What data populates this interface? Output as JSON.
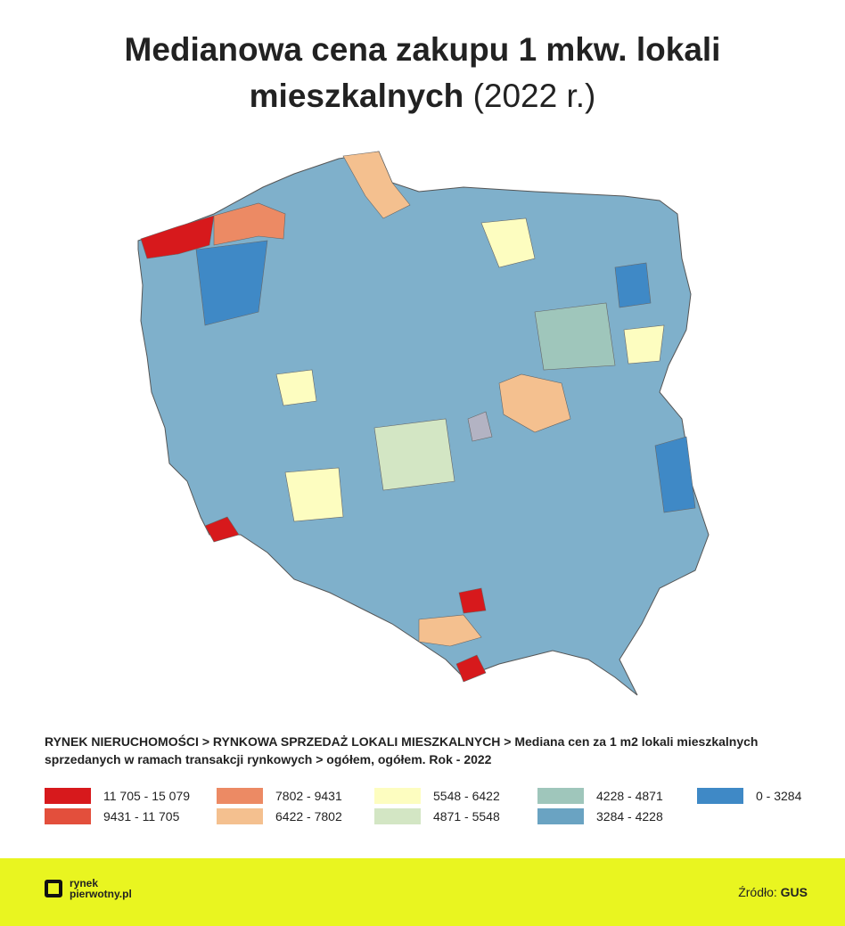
{
  "title": "Medianowa cena zakupu 1 mkw. lokali mieszkalnych",
  "title_suffix": "(2022 r.)",
  "description": "RYNEK NIERUCHOMOŚCI > RYNKOWA SPRZEDAŻ LOKALI MIESZKALNYCH > Mediana cen za 1 m2 lokali mieszkalnych sprzedanych w ramach transakcji rynkowych > ogółem, ogółem. Rok - 2022",
  "legend": [
    {
      "label": "11 705 - 15 079",
      "color": "#d7191c"
    },
    {
      "label": "9431 - 11 705",
      "color": "#e34f3c"
    },
    {
      "label": "7802 - 9431",
      "color": "#ec8a64"
    },
    {
      "label": "6422 - 7802",
      "color": "#f4c08f"
    },
    {
      "label": "5548 - 6422",
      "color": "#fdfdc0"
    },
    {
      "label": "4871 - 5548",
      "color": "#d3e6c4"
    },
    {
      "label": "4228 -  4871",
      "color": "#9fc6bb"
    },
    {
      "label": "3284 - 4228",
      "color": "#6aa3c2"
    },
    {
      "label": "0 -  3284",
      "color": "#3f89c6"
    }
  ],
  "footer": {
    "logo_top": "rynek",
    "logo_bottom": "pierwotny.pl",
    "source_label": "Źródło:",
    "source_value": "GUS"
  }
}
